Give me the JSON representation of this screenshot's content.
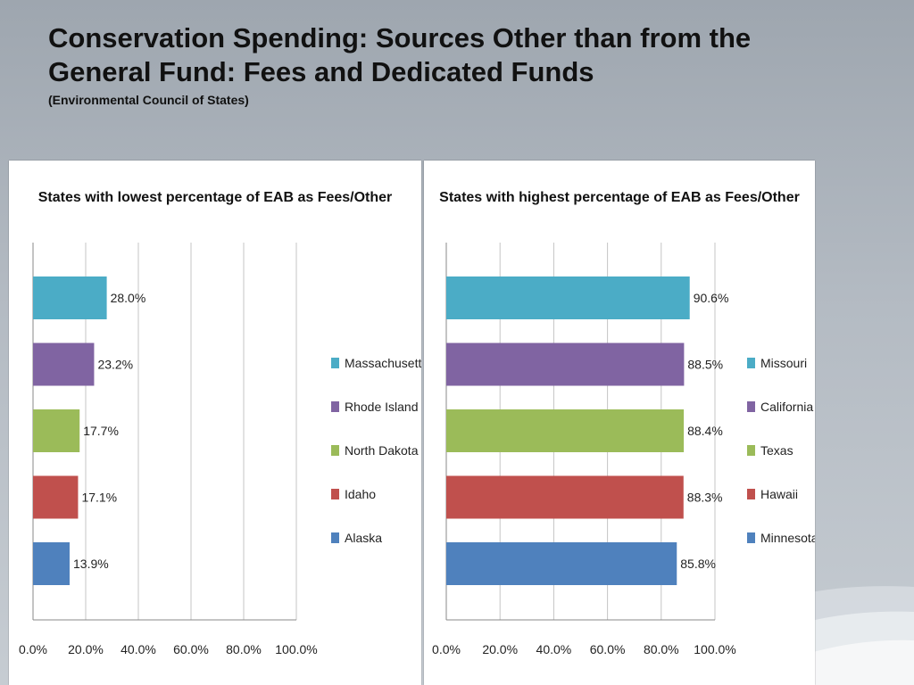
{
  "slide": {
    "title": "Conservation Spending: Sources Other than from the General Fund: Fees and Dedicated Funds",
    "subtitle": "(Environmental Council of States)"
  },
  "chart_data": [
    {
      "type": "bar",
      "orientation": "horizontal",
      "title": "States with lowest percentage of EAB as Fees/Other",
      "categories": [
        "Massachusetts",
        "Rhode Island",
        "North Dakota",
        "Idaho",
        "Alaska"
      ],
      "values": [
        28.0,
        23.2,
        17.7,
        17.1,
        13.9
      ],
      "data_labels": [
        "28.0%",
        "23.2%",
        "17.7%",
        "17.1%",
        "13.9%"
      ],
      "colors": [
        "#4bacc6",
        "#8064a2",
        "#9bbb59",
        "#c0504d",
        "#4f81bd"
      ],
      "xlim": [
        0,
        100
      ],
      "xticks": [
        "0.0%",
        "20.0%",
        "40.0%",
        "60.0%",
        "80.0%",
        "100.0%"
      ],
      "grid": true,
      "legend": "right"
    },
    {
      "type": "bar",
      "orientation": "horizontal",
      "title": "States with highest percentage of EAB as Fees/Other",
      "categories": [
        "Missouri",
        "California",
        "Texas",
        "Hawaii",
        "Minnesota"
      ],
      "values": [
        90.6,
        88.5,
        88.4,
        88.3,
        85.8
      ],
      "data_labels": [
        "90.6%",
        "88.5%",
        "88.4%",
        "88.3%",
        "85.8%"
      ],
      "colors": [
        "#4bacc6",
        "#8064a2",
        "#9bbb59",
        "#c0504d",
        "#4f81bd"
      ],
      "xlim": [
        0,
        100
      ],
      "xticks": [
        "0.0%",
        "20.0%",
        "40.0%",
        "60.0%",
        "80.0%",
        "100.0%"
      ],
      "grid": true,
      "legend": "right"
    }
  ]
}
